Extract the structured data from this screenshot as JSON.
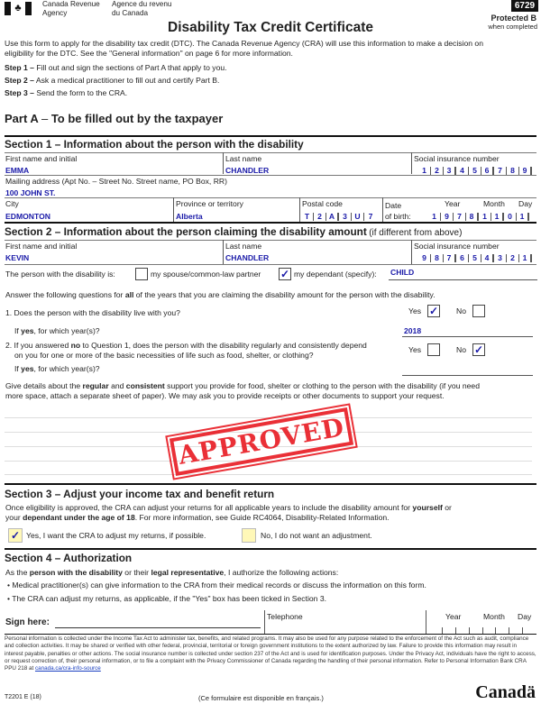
{
  "header": {
    "agency_en_1": "Canada Revenue",
    "agency_en_2": "Agency",
    "agency_fr_1": "Agence du revenu",
    "agency_fr_2": "du Canada",
    "form_code": "6729",
    "protected": "Protected B",
    "protected_sub": "when completed",
    "title": "Disability Tax Credit Certificate"
  },
  "intro": {
    "text1": "Use this form to apply for the disability tax credit (DTC). The Canada Revenue Agency (CRA) will use this information to make a decision on",
    "text2": "eligibility for the DTC. See the \"General information\" on page 6 for more information.",
    "steps": [
      {
        "label": "Step 1 –",
        "text": "Fill out and sign the sections of Part A that apply to you."
      },
      {
        "label": "Step 2 –",
        "text": "Ask a medical practitioner to fill out and certify Part B."
      },
      {
        "label": "Step 3 –",
        "text": "Send the form to the CRA."
      }
    ]
  },
  "part_a": {
    "title": "Part A",
    "title_rest": "To be filled out by the taxpayer"
  },
  "section1": {
    "title": "Section 1 – Information about the person with the disability",
    "first_name_label": "First name and initial",
    "first_name": "EMMA",
    "last_name_label": "Last name",
    "last_name": "CHANDLER",
    "sin_label": "Social insurance number",
    "sin": [
      "1",
      "2",
      "3",
      "4",
      "5",
      "6",
      "7",
      "8",
      "9"
    ],
    "address_label": "Mailing address (Apt No. – Street No. Street name, PO Box, RR)",
    "address": "100 JOHN ST.",
    "city_label": "City",
    "city": "EDMONTON",
    "province_label": "Province or territory",
    "province": "Alberta",
    "postal_label": "Postal code",
    "postal": [
      "T",
      "2",
      "A",
      "3",
      "U",
      "7"
    ],
    "date_label": "Date",
    "dob_label": "of birth:",
    "year_label": "Year",
    "month_label": "Month",
    "day_label": "Day",
    "dob": [
      "1",
      "9",
      "7",
      "8",
      "1",
      "1",
      "0",
      "1"
    ]
  },
  "section2": {
    "title": "Section 2 – Information about the person claiming the disability amount",
    "title_suffix": "(if different from above)",
    "first_name_label": "First name and initial",
    "first_name": "KEVIN",
    "last_name_label": "Last name",
    "last_name": "CHANDLER",
    "sin_label": "Social insurance number",
    "sin": [
      "9",
      "8",
      "7",
      "6",
      "5",
      "4",
      "3",
      "2",
      "1"
    ],
    "relation_label": "The person with the disability is:",
    "spouse_label": "my spouse/common-law partner",
    "spouse_checked": false,
    "dependant_label": "my dependant (specify):",
    "dependant_checked": true,
    "dependant_value": "CHILD",
    "answer_pre": "Answer the following questions for",
    "answer_bold": "all",
    "answer_post": "of the years that you are claiming the disability amount for the person with the disability.",
    "q1": "1. Does the person with the disability live with you?",
    "q1_yes": true,
    "q1_no": false,
    "yes_label": "Yes",
    "no_label": "No",
    "ifyes_bold": "yes",
    "ifyes_pre": "If",
    "ifyes_post": ", for which year(s)?",
    "q1_years": "2018",
    "q2_pre": "2. If you answered",
    "q2_bold": "no",
    "q2_post": "to Question 1, does the person with the disability regularly and consistently depend",
    "q2_line2": "on you for one or more of the basic necessities of life such as food, shelter, or clothing?",
    "q2_yes": false,
    "q2_no": true,
    "q2_years": "",
    "details_1": "Give details about the",
    "details_b1": "regular",
    "details_and": "and",
    "details_b2": "consistent",
    "details_2": "support you provide for food, shelter or clothing to the person with the disability (if you need",
    "details_3": "more space, attach a separate sheet of paper). We may ask you to provide receipts or other documents to support your request."
  },
  "stamp": {
    "text": "APPROVED",
    "color": "#e8141c"
  },
  "section3": {
    "title": "Section 3 – Adjust your income tax and benefit return",
    "text1_pre": "Once eligibility is approved, the CRA can adjust your returns for all applicable years to include the disability amount for",
    "text1_b": "yourself",
    "text1_post": "or",
    "text2_pre": "your",
    "text2_b": "dependant under the age of 18",
    "text2_post": ". For more information, see Guide RC4064, Disability-Related Information.",
    "yes_label": "Yes, I want the CRA to adjust my returns, if possible.",
    "yes_checked": true,
    "no_label": "No, I do not want an adjustment.",
    "no_checked": false
  },
  "section4": {
    "title": "Section 4 – Authorization",
    "auth_pre": "As the",
    "auth_b1": "person with the disability",
    "auth_mid": "or their",
    "auth_b2": "legal representative",
    "auth_post": ", I authorize the following actions:",
    "bullet1": "• Medical practitioner(s) can give information to the CRA from their medical records or discuss the information on this form.",
    "bullet2": "• The CRA can adjust my returns, as applicable, if the \"Yes\" box has been ticked in Section 3.",
    "sign_label": "Sign here:",
    "telephone_label": "Telephone",
    "year_label": "Year",
    "month_label": "Month",
    "day_label": "Day"
  },
  "privacy": {
    "text": "Personal information is collected under the Income Tax Act to administer tax, benefits, and related programs. It may also be used for any purpose related to the enforcement of the Act such as audit, compliance and collection activities. It may be shared or verified with other federal, provincial, territorial or foreign government institutions to the extent authorized by law. Failure to provide this information may result in interest payable, penalties or other actions. The social insurance number is collected under section 237 of the Act and is used for identification purposes. Under the Privacy Act, individuals have the right to access, or request correction of, their personal information, or to file a complaint with the Privacy Commissioner of Canada regarding the handling of their personal information. Refer to Personal Information Bank CRA PPU 218 at",
    "link": "canada.ca/cra-info-source"
  },
  "footer": {
    "form_id": "T2201 E (18)",
    "french": "(Ce formulaire est disponible en français.)",
    "wordmark": "Canadä"
  }
}
